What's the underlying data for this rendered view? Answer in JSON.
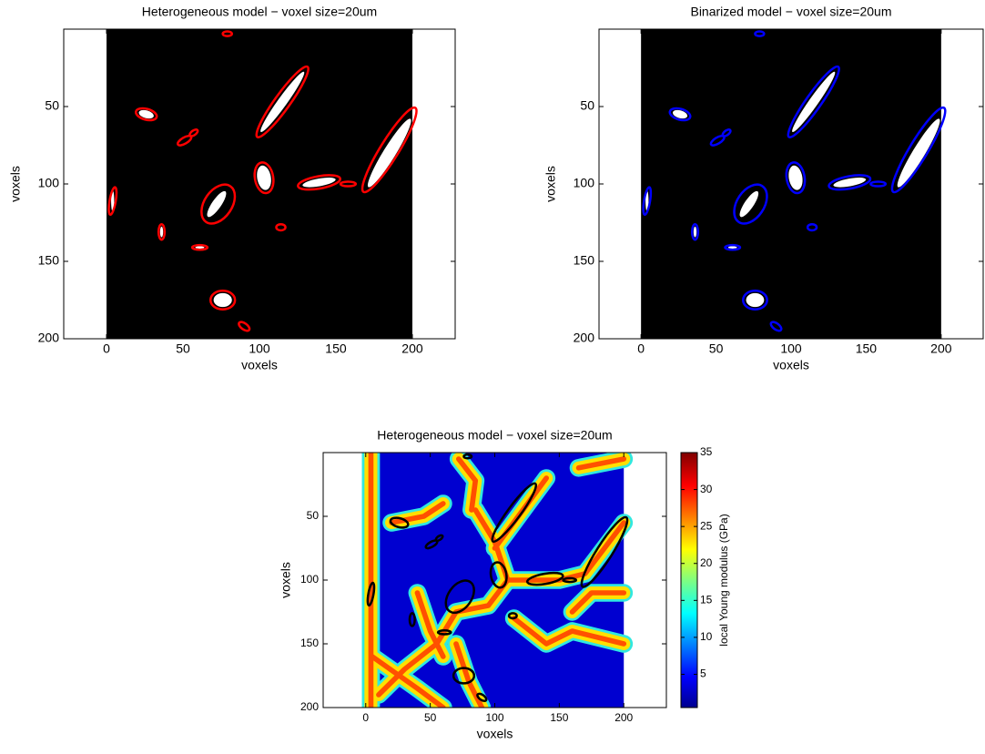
{
  "chart_data": [
    {
      "type": "image",
      "title": "Heterogeneous model − voxel size=20um",
      "xlabel": "voxels",
      "ylabel": "voxels",
      "xlim": [
        -28,
        228
      ],
      "ylim": [
        0,
        200
      ],
      "xticks": [
        0,
        50,
        100,
        150,
        200
      ],
      "yticks": [
        50,
        100,
        150,
        200
      ],
      "color": "#ff0000"
    },
    {
      "type": "image",
      "title": "Binarized model − voxel size=20um",
      "xlabel": "voxels",
      "ylabel": "voxels",
      "xlim": [
        -28,
        228
      ],
      "ylim": [
        0,
        200
      ],
      "xticks": [
        0,
        50,
        100,
        150,
        200
      ],
      "yticks": [
        50,
        100,
        150,
        200
      ],
      "color": "#0000ff"
    },
    {
      "type": "image",
      "title": "Heterogeneous model − voxel size=20um",
      "xlabel": "voxels",
      "ylabel": "voxels",
      "xlim": [
        -33,
        233
      ],
      "ylim": [
        0,
        200
      ],
      "xticks": [
        0,
        50,
        100,
        150,
        200
      ],
      "yticks": [
        50,
        100,
        150,
        200
      ],
      "color": "#000000",
      "colorbar": {
        "label": "local Young modulus (GPa)",
        "lim": [
          0.5,
          35
        ],
        "ticks": [
          5,
          10,
          15,
          20,
          25,
          30,
          35
        ]
      }
    }
  ]
}
